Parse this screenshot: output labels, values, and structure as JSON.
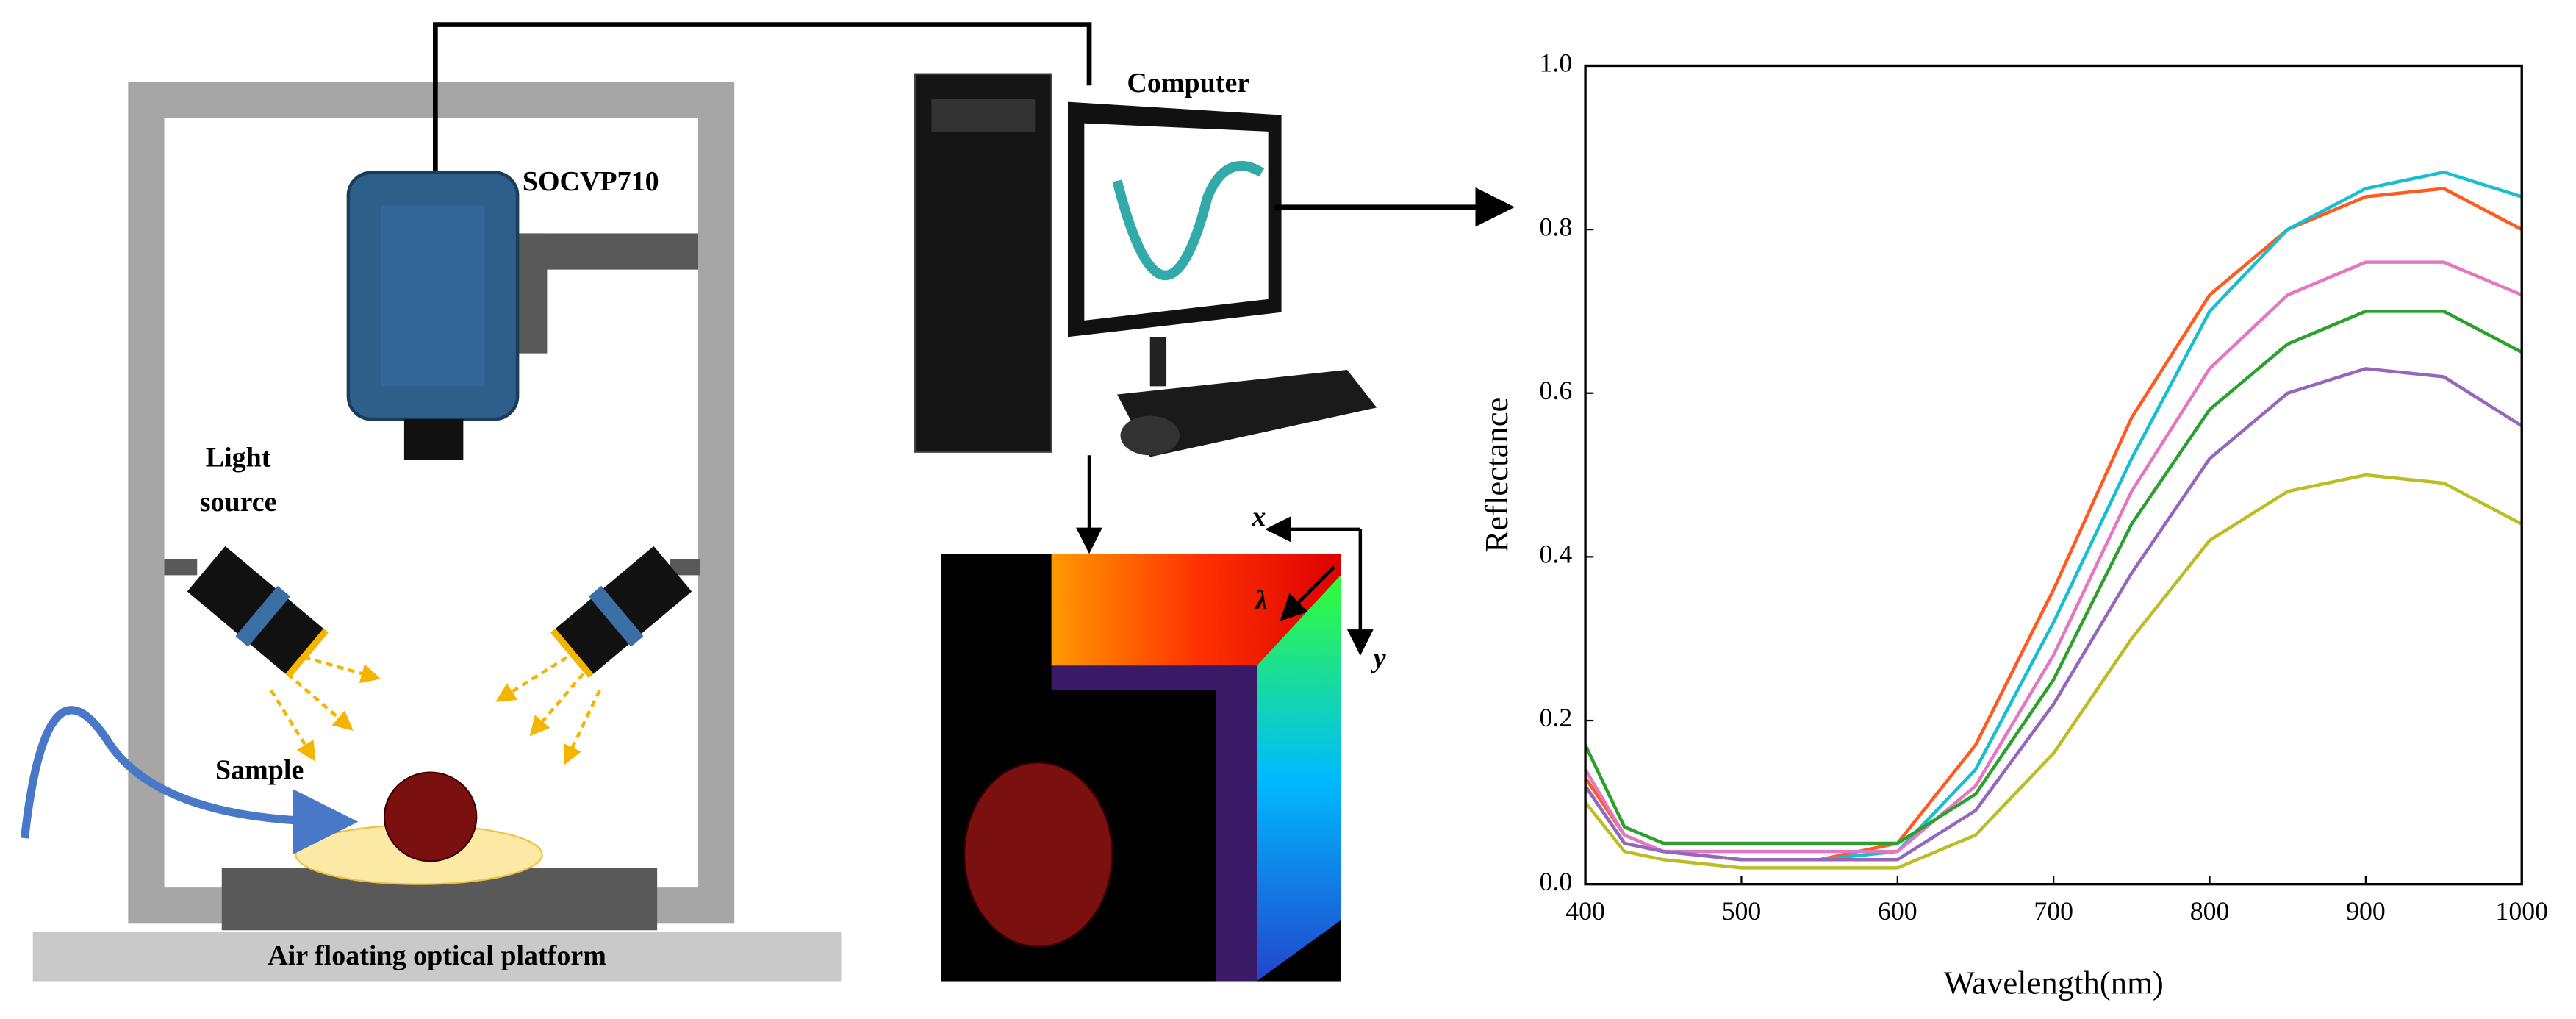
{
  "diagram": {
    "camera": "SOCVP710",
    "computer": "Computer",
    "light_source": [
      "Light",
      "source"
    ],
    "sample": "Sample",
    "platform": "Air floating optical platform",
    "cube_x": "x",
    "cube_y": "y",
    "cube_lambda": "λ"
  },
  "chart_data": {
    "type": "line",
    "xlabel": "Wavelength(nm)",
    "ylabel": "Reflectance",
    "x": [
      400,
      425,
      450,
      500,
      550,
      600,
      650,
      700,
      750,
      800,
      850,
      900,
      950,
      1000
    ],
    "series": [
      {
        "color": "#ff5a1f",
        "values": [
          0.13,
          0.06,
          0.04,
          0.03,
          0.03,
          0.05,
          0.17,
          0.36,
          0.57,
          0.72,
          0.8,
          0.84,
          0.85,
          0.8
        ]
      },
      {
        "color": "#17becf",
        "values": [
          0.12,
          0.05,
          0.04,
          0.03,
          0.03,
          0.04,
          0.14,
          0.32,
          0.52,
          0.7,
          0.8,
          0.85,
          0.87,
          0.84
        ]
      },
      {
        "color": "#e377c2",
        "values": [
          0.14,
          0.06,
          0.04,
          0.04,
          0.04,
          0.04,
          0.12,
          0.28,
          0.48,
          0.63,
          0.72,
          0.76,
          0.76,
          0.72
        ]
      },
      {
        "color": "#2ca02c",
        "values": [
          0.17,
          0.07,
          0.05,
          0.05,
          0.05,
          0.05,
          0.11,
          0.25,
          0.44,
          0.58,
          0.66,
          0.7,
          0.7,
          0.65
        ]
      },
      {
        "color": "#9467bd",
        "values": [
          0.12,
          0.05,
          0.04,
          0.03,
          0.03,
          0.03,
          0.09,
          0.22,
          0.38,
          0.52,
          0.6,
          0.63,
          0.62,
          0.56
        ]
      },
      {
        "color": "#bcbd22",
        "values": [
          0.1,
          0.04,
          0.03,
          0.02,
          0.02,
          0.02,
          0.06,
          0.16,
          0.3,
          0.42,
          0.48,
          0.5,
          0.49,
          0.44
        ]
      }
    ],
    "xlim": [
      400,
      1000
    ],
    "xticks": [
      400,
      500,
      600,
      700,
      800,
      900,
      1000
    ],
    "ylim": [
      0,
      1
    ],
    "yticks": [
      {
        "value": 0,
        "label": "0.0"
      },
      {
        "value": 0.2,
        "label": "0.2"
      },
      {
        "value": 0.4,
        "label": "0.4"
      },
      {
        "value": 0.6,
        "label": "0.6"
      },
      {
        "value": 0.8,
        "label": "0.8"
      },
      {
        "value": 1,
        "label": "1.0"
      }
    ],
    "grid": false
  }
}
